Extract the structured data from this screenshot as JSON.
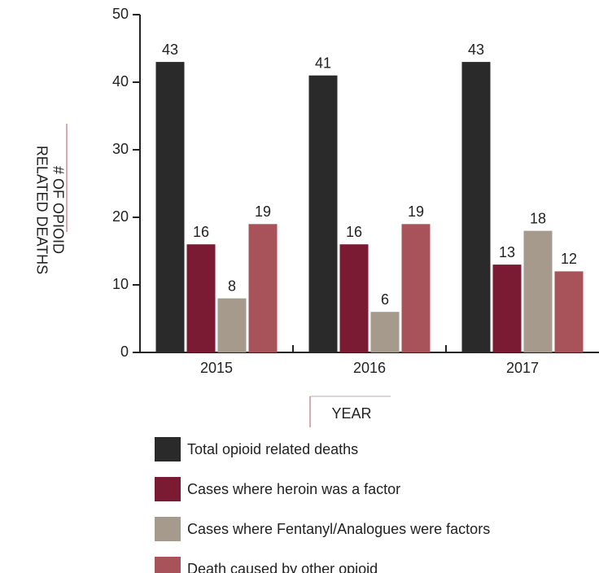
{
  "chart_data": {
    "type": "bar",
    "ylabel": [
      "# OF OPIOID",
      "RELATED DEATHS"
    ],
    "xlabel": "YEAR",
    "categories": [
      "2015",
      "2016",
      "2017"
    ],
    "series": [
      {
        "name": "Total opioid related deaths",
        "color": "#2b2a2b",
        "values": [
          43,
          41,
          43
        ]
      },
      {
        "name": "Cases where heroin was a factor",
        "color": "#7a1a33",
        "values": [
          16,
          16,
          13
        ]
      },
      {
        "name": "Cases where Fentanyl/Analogues were factors",
        "color": "#a59a8c",
        "values": [
          8,
          6,
          18
        ]
      },
      {
        "name": "Death caused by other opioid",
        "color": "#a8525a",
        "values": [
          19,
          19,
          12
        ]
      }
    ],
    "ylim": [
      0,
      50
    ],
    "yticks": [
      0,
      10,
      20,
      30,
      40,
      50
    ],
    "grid": false,
    "legend": "bottom"
  }
}
